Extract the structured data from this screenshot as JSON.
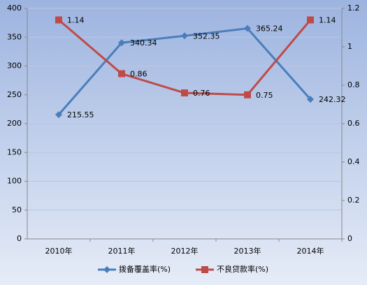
{
  "chart_data": {
    "type": "line",
    "categories": [
      "2010年",
      "2011年",
      "2012年",
      "2013年",
      "2014年"
    ],
    "series": [
      {
        "name": "拨备覆盖率(%)",
        "color": "#4a7ebb",
        "marker": "diamond",
        "values": [
          215.55,
          340.34,
          352.35,
          365.24,
          242.32
        ]
      },
      {
        "name": "不良贷款率(%)",
        "color": "#be4b48",
        "marker": "square",
        "axis": "y2",
        "values": [
          1.14,
          0.86,
          0.76,
          0.75,
          1.14
        ]
      }
    ],
    "ylim": [
      0,
      400
    ],
    "yticks": [
      0,
      50,
      100,
      150,
      200,
      250,
      300,
      350,
      400
    ],
    "y2lim": [
      0,
      1.2
    ],
    "y2ticks": [
      0,
      0.2,
      0.4,
      0.6,
      0.8,
      1,
      1.2
    ],
    "grid": true,
    "legend": "bottom"
  }
}
